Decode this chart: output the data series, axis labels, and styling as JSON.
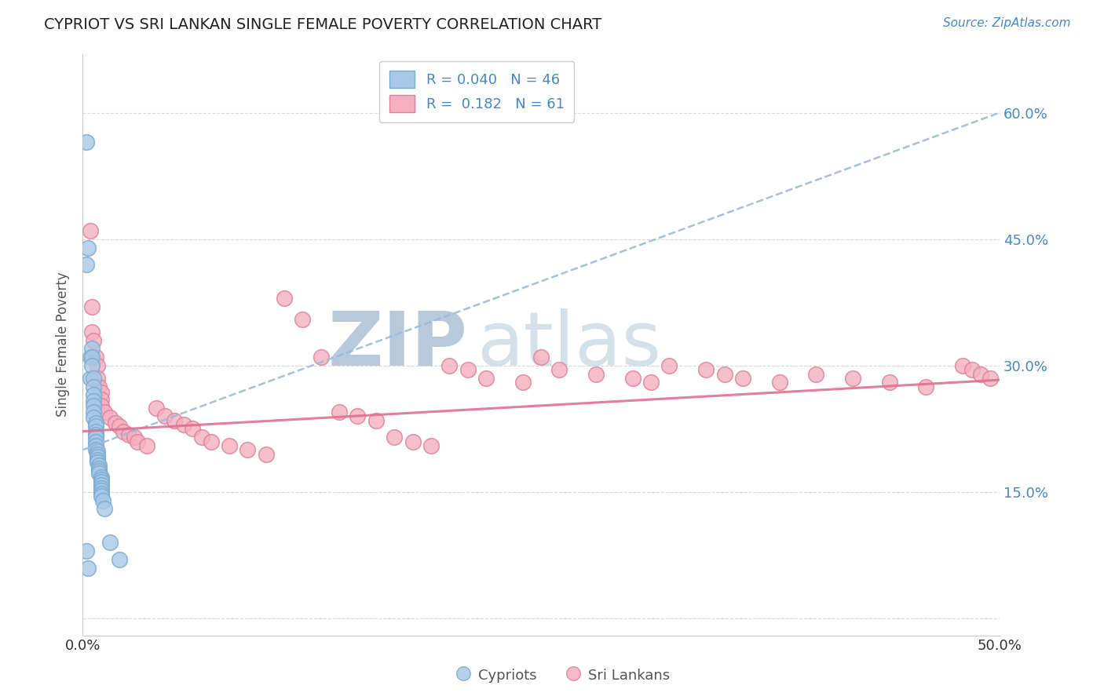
{
  "title": "CYPRIOT VS SRI LANKAN SINGLE FEMALE POVERTY CORRELATION CHART",
  "source": "Source: ZipAtlas.com",
  "ylabel": "Single Female Poverty",
  "xlim": [
    0.0,
    0.5
  ],
  "ylim": [
    -0.02,
    0.67
  ],
  "ytick_positions": [
    0.0,
    0.15,
    0.3,
    0.45,
    0.6
  ],
  "ytick_labels": [
    "",
    "15.0%",
    "30.0%",
    "45.0%",
    "60.0%"
  ],
  "cypriot_color": "#a8c8e8",
  "srilanka_color": "#f4afc0",
  "cypriot_edge": "#7aaad0",
  "srilanka_edge": "#e0809a",
  "trend_cypriot_color": "#99bbdd",
  "trend_srilanka_color": "#e07090",
  "R_cypriot": 0.04,
  "N_cypriot": 46,
  "R_srilanka": 0.182,
  "N_srilanka": 61,
  "cypriot_trend_x0": 0.0,
  "cypriot_trend_y0": 0.2,
  "cypriot_trend_x1": 0.5,
  "cypriot_trend_y1": 0.6,
  "srilanka_trend_x0": 0.0,
  "srilanka_trend_y0": 0.222,
  "srilanka_trend_x1": 0.5,
  "srilanka_trend_y1": 0.283,
  "watermark_zip": "ZIP",
  "watermark_atlas": "atlas",
  "watermark_color": "#ccd8e8",
  "background_color": "#ffffff",
  "grid_color": "#d0d0d0",
  "title_color": "#222222",
  "label_color": "#555555",
  "source_color": "#4488cc",
  "tick_label_color": "#4488cc",
  "cypriot_x": [
    0.002,
    0.002,
    0.003,
    0.004,
    0.004,
    0.005,
    0.005,
    0.005,
    0.006,
    0.006,
    0.006,
    0.006,
    0.006,
    0.006,
    0.006,
    0.007,
    0.007,
    0.007,
    0.007,
    0.007,
    0.007,
    0.007,
    0.007,
    0.008,
    0.008,
    0.008,
    0.008,
    0.008,
    0.009,
    0.009,
    0.009,
    0.009,
    0.01,
    0.01,
    0.01,
    0.01,
    0.01,
    0.01,
    0.01,
    0.01,
    0.011,
    0.012,
    0.015,
    0.02,
    0.002,
    0.003
  ],
  "cypriot_y": [
    0.565,
    0.42,
    0.44,
    0.31,
    0.285,
    0.32,
    0.31,
    0.3,
    0.285,
    0.275,
    0.265,
    0.258,
    0.252,
    0.245,
    0.238,
    0.232,
    0.228,
    0.222,
    0.218,
    0.215,
    0.21,
    0.205,
    0.2,
    0.198,
    0.195,
    0.192,
    0.188,
    0.185,
    0.182,
    0.178,
    0.175,
    0.172,
    0.168,
    0.165,
    0.162,
    0.158,
    0.155,
    0.152,
    0.148,
    0.145,
    0.14,
    0.13,
    0.09,
    0.07,
    0.08,
    0.06
  ],
  "srilanka_x": [
    0.004,
    0.005,
    0.005,
    0.006,
    0.007,
    0.008,
    0.008,
    0.009,
    0.01,
    0.01,
    0.01,
    0.012,
    0.015,
    0.018,
    0.02,
    0.022,
    0.025,
    0.028,
    0.03,
    0.035,
    0.04,
    0.045,
    0.05,
    0.055,
    0.06,
    0.065,
    0.07,
    0.08,
    0.09,
    0.1,
    0.11,
    0.12,
    0.13,
    0.14,
    0.15,
    0.16,
    0.17,
    0.18,
    0.19,
    0.2,
    0.21,
    0.22,
    0.24,
    0.25,
    0.26,
    0.28,
    0.3,
    0.31,
    0.32,
    0.34,
    0.35,
    0.36,
    0.38,
    0.4,
    0.42,
    0.44,
    0.46,
    0.48,
    0.485,
    0.49,
    0.495
  ],
  "srilanka_y": [
    0.46,
    0.37,
    0.34,
    0.33,
    0.31,
    0.3,
    0.285,
    0.275,
    0.268,
    0.26,
    0.252,
    0.245,
    0.238,
    0.232,
    0.228,
    0.222,
    0.218,
    0.215,
    0.21,
    0.205,
    0.25,
    0.24,
    0.235,
    0.23,
    0.225,
    0.215,
    0.21,
    0.205,
    0.2,
    0.195,
    0.38,
    0.355,
    0.31,
    0.245,
    0.24,
    0.235,
    0.215,
    0.21,
    0.205,
    0.3,
    0.295,
    0.285,
    0.28,
    0.31,
    0.295,
    0.29,
    0.285,
    0.28,
    0.3,
    0.295,
    0.29,
    0.285,
    0.28,
    0.29,
    0.285,
    0.28,
    0.275,
    0.3,
    0.295,
    0.29,
    0.285
  ]
}
